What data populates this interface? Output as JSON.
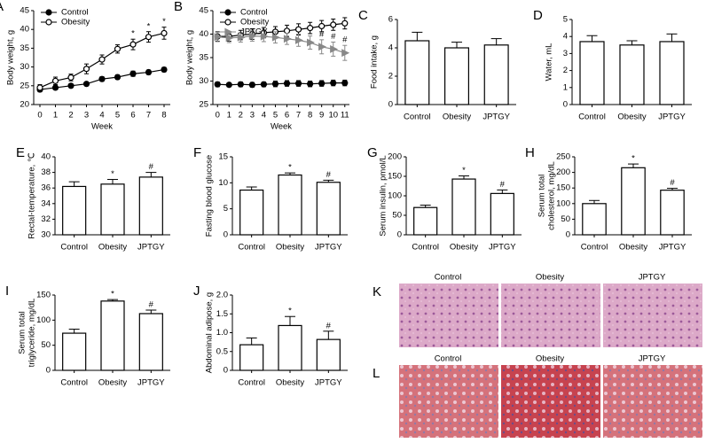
{
  "chart_data": [
    {
      "type": "line",
      "panel": "A",
      "ylabel": [
        "Body weight, g"
      ],
      "xlabel": "Week",
      "x": [
        0,
        1,
        2,
        3,
        4,
        5,
        6,
        7,
        8
      ],
      "xlim": [
        -0.4,
        8.4
      ],
      "xticks": [
        0,
        1,
        2,
        3,
        4,
        5,
        6,
        7,
        8
      ],
      "ylim": [
        20,
        45
      ],
      "yticks": [
        20,
        25,
        30,
        35,
        40,
        45
      ],
      "series": [
        {
          "name": "Control",
          "color": "#000000",
          "marker": "filled",
          "values": [
            24,
            24.5,
            25,
            25.5,
            26.8,
            27.3,
            28.2,
            28.6,
            29.3
          ],
          "errors": [
            0.6,
            0.5,
            0.5,
            0.5,
            0.6,
            0.6,
            0.7,
            0.6,
            0.6
          ]
        },
        {
          "name": "Obesity",
          "color": "#000000",
          "marker": "open",
          "values": [
            24.5,
            26.3,
            27.2,
            29.5,
            32,
            34.8,
            36,
            38,
            39
          ],
          "errors": [
            0.8,
            1,
            0.9,
            1.3,
            1.2,
            1.1,
            1.4,
            1.4,
            1.6
          ],
          "markers": [
            null,
            null,
            null,
            null,
            null,
            null,
            "*",
            "*",
            "*"
          ]
        }
      ]
    },
    {
      "type": "line",
      "panel": "B",
      "ylabel": [
        "Body weight, g"
      ],
      "xlabel": "Week",
      "x": [
        0,
        1,
        2,
        3,
        4,
        5,
        6,
        7,
        8,
        9,
        10,
        11
      ],
      "xlim": [
        -0.4,
        11.4
      ],
      "xticks": [
        0,
        1,
        2,
        3,
        4,
        5,
        6,
        7,
        8,
        9,
        10,
        11
      ],
      "ylim": [
        25,
        45
      ],
      "yticks": [
        25,
        30,
        35,
        40,
        45
      ],
      "series": [
        {
          "name": "Control",
          "color": "#000000",
          "marker": "filled",
          "values": [
            29.3,
            29.2,
            29.3,
            29.2,
            29.3,
            29.4,
            29.5,
            29.5,
            29.4,
            29.5,
            29.6,
            29.6
          ],
          "errors": [
            0.5,
            0.4,
            0.5,
            0.5,
            0.5,
            0.6,
            0.6,
            0.6,
            0.6,
            0.6,
            0.6,
            0.6
          ]
        },
        {
          "name": "Obesity",
          "color": "#000000",
          "marker": "open",
          "values": [
            39.5,
            39.5,
            39.8,
            40,
            40.3,
            40.5,
            40.7,
            41,
            41.3,
            41.7,
            42,
            42.3
          ],
          "errors": [
            1,
            1,
            1,
            1.1,
            1.1,
            1.1,
            1.2,
            1.2,
            1.2,
            1.2,
            1.2,
            1.2
          ]
        },
        {
          "name": "JPTGY",
          "color": "#888888",
          "marker": "triangle",
          "values": [
            39.4,
            39.2,
            39.3,
            39.6,
            39.5,
            39.3,
            39,
            38.7,
            38.2,
            37.3,
            36.8,
            36
          ],
          "errors": [
            1,
            1,
            1,
            1.1,
            1.1,
            1.2,
            1.2,
            1.3,
            1.4,
            1.5,
            1.5,
            1.6
          ],
          "markers": [
            null,
            null,
            null,
            null,
            null,
            null,
            null,
            null,
            null,
            "#",
            "#",
            "#"
          ]
        }
      ]
    },
    {
      "type": "bar",
      "panel": "C",
      "ylabel": [
        "Food intake, g"
      ],
      "categories": [
        "Control",
        "Obesity",
        "JPTGY"
      ],
      "values": [
        4.5,
        4.0,
        4.2
      ],
      "errors": [
        0.6,
        0.4,
        0.45
      ],
      "ylim": [
        0,
        6
      ],
      "yticks": [
        0,
        2,
        4,
        6
      ]
    },
    {
      "type": "bar",
      "panel": "D",
      "ylabel": [
        "Water, mL"
      ],
      "categories": [
        "Control",
        "Obesity",
        "JPTGY"
      ],
      "values": [
        3.7,
        3.5,
        3.7
      ],
      "errors": [
        0.35,
        0.25,
        0.45
      ],
      "ylim": [
        0,
        5
      ],
      "yticks": [
        0,
        1,
        2,
        3,
        4,
        5
      ]
    },
    {
      "type": "bar",
      "panel": "E",
      "ylabel": [
        "Rectal-temperature, ℃"
      ],
      "categories": [
        "Control",
        "Obesity",
        "JPTGY"
      ],
      "values": [
        36.2,
        36.5,
        37.4
      ],
      "errors": [
        0.6,
        0.6,
        0.6
      ],
      "markers": [
        null,
        "*",
        "#"
      ],
      "ylim": [
        30,
        40
      ],
      "yticks": [
        30,
        32,
        34,
        36,
        38,
        40
      ]
    },
    {
      "type": "bar",
      "panel": "F",
      "ylabel": [
        "Fasting blood glucose"
      ],
      "categories": [
        "Control",
        "Obesity",
        "JPTGY"
      ],
      "values": [
        8.6,
        11.5,
        10.1
      ],
      "errors": [
        0.6,
        0.4,
        0.4
      ],
      "markers": [
        null,
        "*",
        "#"
      ],
      "ylim": [
        0,
        15
      ],
      "yticks": [
        0,
        5,
        10,
        15
      ]
    },
    {
      "type": "bar",
      "panel": "G",
      "ylabel": [
        "Serum insulin, pmol/L"
      ],
      "categories": [
        "Control",
        "Obesity",
        "JPTGY"
      ],
      "values": [
        70,
        143,
        106
      ],
      "errors": [
        6,
        8,
        9
      ],
      "markers": [
        null,
        "*",
        "#"
      ],
      "ylim": [
        0,
        200
      ],
      "yticks": [
        0,
        50,
        100,
        150,
        200
      ]
    },
    {
      "type": "bar",
      "panel": "H",
      "ylabel": [
        "Serum total",
        "cholesterol, mg/dL"
      ],
      "categories": [
        "Control",
        "Obesity",
        "JPTGY"
      ],
      "values": [
        100,
        215,
        143
      ],
      "errors": [
        10,
        12,
        6
      ],
      "markers": [
        null,
        "*",
        "#"
      ],
      "ylim": [
        0,
        250
      ],
      "yticks": [
        0,
        50,
        100,
        150,
        200,
        250
      ]
    },
    {
      "type": "bar",
      "panel": "I",
      "ylabel": [
        "Serum total",
        "triglyceride, mg/dL"
      ],
      "categories": [
        "Control",
        "Obesity",
        "JPTGY"
      ],
      "values": [
        74,
        138,
        113
      ],
      "errors": [
        8,
        3,
        7
      ],
      "markers": [
        null,
        "*",
        "#"
      ],
      "ylim": [
        0,
        150
      ],
      "yticks": [
        0,
        50,
        100,
        150
      ]
    },
    {
      "type": "bar",
      "panel": "J",
      "ylabel": [
        "Abdominal adipose, g"
      ],
      "categories": [
        "Control",
        "Obesity",
        "JPTGY"
      ],
      "values": [
        0.68,
        1.19,
        0.82
      ],
      "errors": [
        0.18,
        0.24,
        0.22
      ],
      "markers": [
        null,
        "*",
        "#"
      ],
      "ylim": [
        0,
        2
      ],
      "yticks": [
        0,
        0.5,
        {
          "value": 1,
          "label": "1.0"
        },
        1.5,
        {
          "value": 2,
          "label": "2.0"
        }
      ]
    }
  ],
  "images": [
    {
      "panel": "K",
      "labels": [
        "Control",
        "Obesity",
        "JPTGY"
      ]
    },
    {
      "panel": "L",
      "labels": [
        "Control",
        "Obesity",
        "JPTGY"
      ]
    }
  ]
}
